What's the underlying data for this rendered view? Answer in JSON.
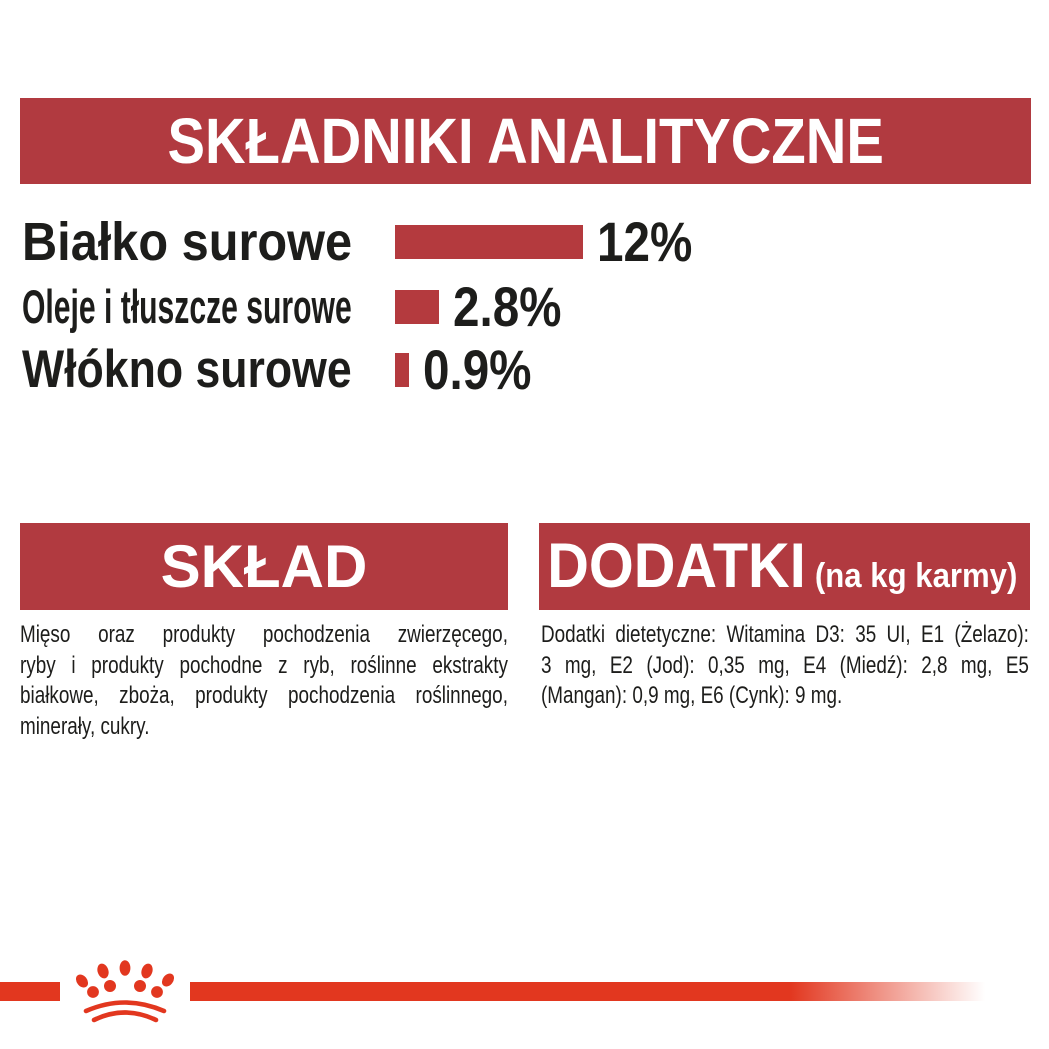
{
  "colors": {
    "banner_red": "#b13a40",
    "bar_red": "#b43a3e",
    "brand_red": "#e2371f",
    "text_black": "#1d1d1b"
  },
  "analytics": {
    "title": "SKŁADNIKI ANALITYCZNE",
    "rows": [
      {
        "label": "Białko surowe",
        "value": "12%",
        "pct": 12
      },
      {
        "label": "Oleje i tłuszcze surowe",
        "value": "2.8%",
        "pct": 2.8
      },
      {
        "label": "Włókno surowe",
        "value": "0.9%",
        "pct": 0.9
      }
    ],
    "max_pct": 12
  },
  "sklad": {
    "title": "SKŁAD",
    "lines": [
      "Mięso oraz produkty pochodzenia zwierzęcego,",
      "ryby i produkty pochodne z ryb, roślinne ekstrakty",
      "białkowe, zboża, produkty pochodzenia roślinnego,",
      "minerały, cukry."
    ]
  },
  "dodatki": {
    "title": "DODATKI",
    "subtitle": "(na kg karmy)",
    "lines": [
      "Dodatki dietetyczne: Witamina D3: 35 UI, E1 (Żelazo):",
      "3 mg, E2 (Jod): 0,35 mg, E4 (Miedź): 2,8 mg, E5",
      "(Mangan): 0,9 mg, E6 (Cynk): 9 mg."
    ]
  },
  "footer": {
    "brand_icon": "royal-canin-crown-icon"
  },
  "chart_data": {
    "type": "bar",
    "orientation": "horizontal",
    "title": "SKŁADNIKI ANALITYCZNE",
    "categories": [
      "Białko surowe",
      "Oleje i tłuszcze surowe",
      "Włókno surowe"
    ],
    "values": [
      12,
      2.8,
      0.9
    ],
    "data_labels": [
      "12%",
      "2.8%",
      "0.9%"
    ],
    "unit": "%",
    "xlim": [
      0,
      12
    ],
    "grid": false,
    "legend": false,
    "bar_color": "#b43a3e"
  }
}
